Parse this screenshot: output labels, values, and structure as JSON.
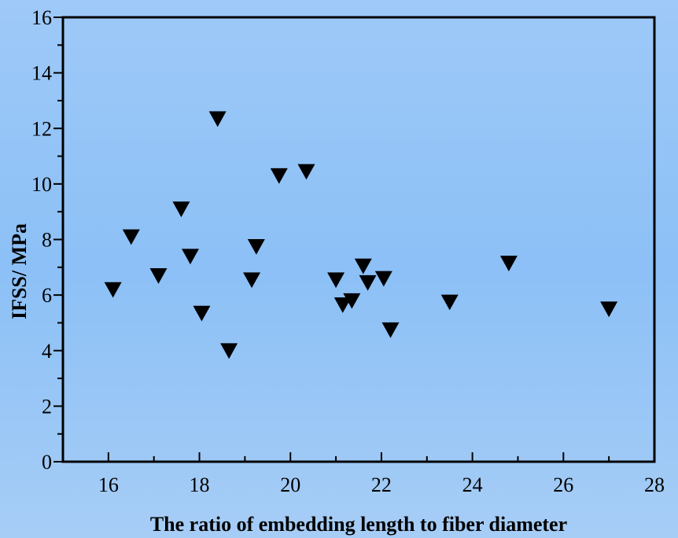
{
  "chart_data": {
    "type": "scatter",
    "title": "",
    "xlabel": "The ratio of embedding length to fiber diameter",
    "ylabel": "IFSS/ MPa",
    "xlim": [
      15,
      28
    ],
    "ylim": [
      0,
      16
    ],
    "x_ticks": [
      16,
      18,
      20,
      22,
      24,
      26,
      28
    ],
    "y_ticks": [
      0,
      2,
      4,
      6,
      8,
      10,
      12,
      14,
      16
    ],
    "grid": false,
    "legend": "none",
    "marker": "down-triangle",
    "marker_color": "#000000",
    "points": [
      {
        "x": 16.1,
        "y": 6.2
      },
      {
        "x": 16.5,
        "y": 8.1
      },
      {
        "x": 17.1,
        "y": 6.7
      },
      {
        "x": 17.6,
        "y": 9.1
      },
      {
        "x": 17.8,
        "y": 7.4
      },
      {
        "x": 18.05,
        "y": 5.35
      },
      {
        "x": 18.4,
        "y": 12.35
      },
      {
        "x": 18.65,
        "y": 4.0
      },
      {
        "x": 19.15,
        "y": 6.55
      },
      {
        "x": 19.25,
        "y": 7.75
      },
      {
        "x": 19.75,
        "y": 10.3
      },
      {
        "x": 20.35,
        "y": 10.45
      },
      {
        "x": 21.0,
        "y": 6.55
      },
      {
        "x": 21.15,
        "y": 5.65
      },
      {
        "x": 21.35,
        "y": 5.8
      },
      {
        "x": 21.6,
        "y": 7.05
      },
      {
        "x": 21.7,
        "y": 6.45
      },
      {
        "x": 22.05,
        "y": 6.6
      },
      {
        "x": 22.2,
        "y": 4.75
      },
      {
        "x": 23.5,
        "y": 5.75
      },
      {
        "x": 24.8,
        "y": 7.15
      },
      {
        "x": 27.0,
        "y": 5.5
      }
    ]
  }
}
